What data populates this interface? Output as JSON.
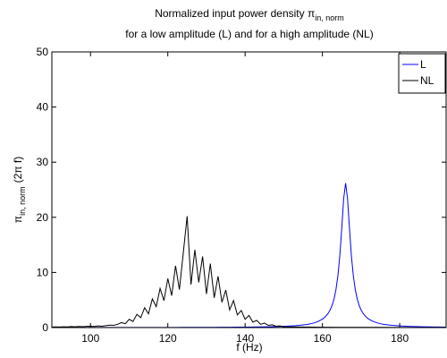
{
  "chart_data": {
    "type": "line",
    "title": {
      "main": "Normalized input power density π",
      "subscript": "in, norm"
    },
    "subtitle": "for a low amplitude (L) and for a high amplitude (NL)",
    "xlabel": "f (Hz)",
    "ylabel": {
      "main": "π",
      "subscript": "in, norm",
      "suffix": "(2π f)"
    },
    "xlim": [
      90,
      192
    ],
    "xticks": [
      100,
      120,
      140,
      160,
      180
    ],
    "ylim": [
      0,
      50
    ],
    "yticks": [
      0,
      10,
      20,
      30,
      40,
      50
    ],
    "grid": false,
    "legend": "northeast",
    "series": [
      {
        "name": "L",
        "color": "#0000ff",
        "x": [
          90,
          92,
          94,
          96,
          98,
          100,
          102,
          104,
          106,
          108,
          110,
          112,
          114,
          116,
          118,
          120,
          122,
          124,
          126,
          128,
          130,
          132,
          134,
          136,
          138,
          140,
          142,
          144,
          146,
          148,
          150,
          151,
          152,
          153,
          154,
          155,
          156,
          157,
          158,
          159,
          160,
          160.5,
          161,
          161.5,
          162,
          162.5,
          163,
          163.5,
          164,
          164.5,
          165,
          165.5,
          166,
          166.5,
          167,
          167.5,
          168,
          168.5,
          169,
          169.5,
          170,
          170.5,
          171,
          171.5,
          172,
          173,
          174,
          175,
          176,
          177,
          178,
          180,
          182,
          184,
          186,
          188,
          190,
          192
        ],
        "values": [
          0.01,
          0.011,
          0.011,
          0.012,
          0.013,
          0.013,
          0.014,
          0.015,
          0.016,
          0.017,
          0.019,
          0.02,
          0.022,
          0.023,
          0.025,
          0.028,
          0.03,
          0.033,
          0.037,
          0.04,
          0.045,
          0.05,
          0.057,
          0.065,
          0.075,
          0.086,
          0.1,
          0.12,
          0.146,
          0.18,
          0.23,
          0.26,
          0.3,
          0.34,
          0.4,
          0.48,
          0.57,
          0.7,
          0.88,
          1.14,
          1.53,
          1.8,
          2.16,
          2.6,
          3.21,
          4.0,
          5.2,
          6.88,
          9.36,
          13,
          18,
          23.4,
          26.2,
          23.4,
          18,
          13,
          9.36,
          6.88,
          5.2,
          4.0,
          3.21,
          2.6,
          2.16,
          1.8,
          1.53,
          1.14,
          0.88,
          0.7,
          0.57,
          0.48,
          0.4,
          0.3,
          0.23,
          0.18,
          0.146,
          0.12,
          0.1,
          0.086
        ]
      },
      {
        "name": "NL",
        "color": "#000000",
        "x": [
          90,
          91,
          92,
          93,
          94,
          95,
          96,
          97,
          98,
          99,
          100,
          101,
          102,
          103,
          104,
          105,
          106,
          107,
          108,
          109,
          110,
          111,
          112,
          113,
          114,
          115,
          116,
          117,
          118,
          119,
          120,
          121,
          122,
          123,
          124,
          125,
          126,
          127,
          128,
          129,
          130,
          131,
          132,
          133,
          134,
          135,
          136,
          137,
          138,
          139,
          140,
          141,
          142,
          143,
          144,
          145,
          146,
          147,
          148,
          149,
          150,
          155,
          160,
          165,
          170,
          175,
          180,
          185,
          190,
          192
        ],
        "values": [
          0.1,
          0.12,
          0.1,
          0.15,
          0.12,
          0.18,
          0.15,
          0.2,
          0.17,
          0.22,
          0.25,
          0.2,
          0.3,
          0.25,
          0.35,
          0.45,
          0.4,
          0.6,
          0.9,
          0.7,
          1.5,
          1.1,
          2.4,
          1.8,
          3.6,
          2.5,
          5.2,
          3.8,
          7.1,
          4.9,
          8.9,
          5.8,
          11.2,
          6.9,
          13.5,
          20.2,
          7.8,
          14.1,
          8.2,
          12.9,
          6.1,
          11.6,
          5.4,
          9.3,
          4.6,
          6.8,
          3.2,
          4.9,
          2.3,
          3.1,
          1.5,
          2.2,
          1.0,
          1.3,
          0.6,
          0.8,
          0.4,
          0.5,
          0.25,
          0.3,
          0.15,
          0.1,
          0.06,
          0.05,
          0.04,
          0.04,
          0.03,
          0.03,
          0.02,
          0.02
        ]
      }
    ]
  }
}
